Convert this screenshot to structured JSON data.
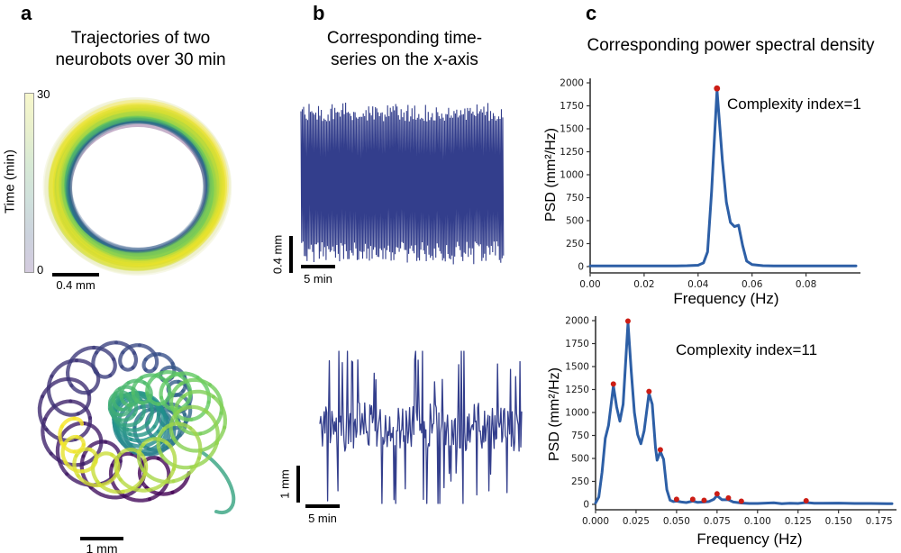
{
  "panels": {
    "a": {
      "label": "a",
      "title_line1": "Trajectories of two",
      "title_line2": "neurobots over 30 min",
      "colorbar": {
        "label": "Time (min)",
        "max": "30",
        "min": "0",
        "gradient": [
          "#f7f7cb",
          "#e9f0cd",
          "#d7e9d5",
          "#cfe0dc",
          "#ccd2dd",
          "#d4cbde"
        ]
      },
      "ring_scale_bar": "0.4 mm",
      "tangle_scale_bar": "1 mm"
    },
    "b": {
      "label": "b",
      "title_line1": "Corresponding time-",
      "title_line2": "series on the x-axis",
      "top": {
        "y_scale_bar": "0.4 mm",
        "x_scale_bar": "5 min"
      },
      "bottom": {
        "y_scale_bar": "1 mm",
        "x_scale_bar": "5 min"
      }
    },
    "c": {
      "label": "c",
      "title": "Corresponding power spectral density",
      "top": {
        "annotation": "Complexity index=1",
        "xlabel": "Frequency (Hz)",
        "ylabel": "PSD (mm²/Hz)"
      },
      "bottom": {
        "annotation": "Complexity index=11",
        "xlabel": "Frequency (Hz)",
        "ylabel": "PSD (mm²/Hz)"
      }
    }
  },
  "chart_data": [
    {
      "id": "trajectory_ring",
      "type": "line",
      "title": "Trajectories of two neurobots over 30 min",
      "description": "Circular ring trajectory of two neurobots, colored by time 0-30 min (viridis)",
      "time_range_min": [
        0,
        30
      ],
      "colormap": [
        "#440154",
        "#3b528b",
        "#21918c",
        "#5ec962",
        "#fde725"
      ],
      "halo_color": "#eef0cc",
      "scale_bar": "0.4 mm",
      "seed": 7
    },
    {
      "id": "trajectory_tangle",
      "type": "line",
      "description": "Tangled looping trajectory of two neurobots, colored by time 0-30 min (viridis)",
      "time_range_min": [
        0,
        30
      ],
      "colormap": [
        "#440154",
        "#3b528b",
        "#21918c",
        "#5ec962",
        "#fde725"
      ],
      "scale_bar": "1 mm",
      "seed": 9
    },
    {
      "id": "timeseries_periodic",
      "type": "line",
      "pattern": "periodic",
      "description": "Dense nearly-periodic x-position time series over 30 min",
      "color": "#333e8c",
      "y_scale_bar": "0.4 mm",
      "x_scale_bar": "5 min",
      "cycles": 150,
      "seed": 12
    },
    {
      "id": "timeseries_irregular",
      "type": "line",
      "pattern": "irregular",
      "description": "Irregular spiky x-position time series over 30 min",
      "color": "#333e8c",
      "y_scale_bar": "1 mm",
      "x_scale_bar": "5 min",
      "n": 235,
      "seed": 21
    },
    {
      "id": "psd_simple",
      "type": "line",
      "annotation": "Complexity index=1",
      "xlabel": "Frequency (Hz)",
      "ylabel": "PSD (mm²/Hz)",
      "xlim": [
        0,
        0.0985
      ],
      "ylim": [
        0,
        2000
      ],
      "xticks": [
        0.0,
        0.02,
        0.04,
        0.06,
        0.08
      ],
      "xtick_labels": [
        "0.00",
        "0.02",
        "0.04",
        "0.06",
        "0.08"
      ],
      "yticks": [
        0,
        250,
        500,
        750,
        1000,
        1250,
        1500,
        1750,
        2000
      ],
      "ytick_labels": [
        "0",
        "250",
        "500",
        "750",
        "1000",
        "1250",
        "1500",
        "1750",
        "2000"
      ],
      "line_color": "#2d5fa6",
      "peak_color": "#cc1d15",
      "peak_radius": 3.4,
      "x": [
        0.0,
        0.004,
        0.008,
        0.012,
        0.016,
        0.02,
        0.024,
        0.028,
        0.032,
        0.036,
        0.04,
        0.042,
        0.0435,
        0.045,
        0.047,
        0.049,
        0.0505,
        0.052,
        0.0535,
        0.055,
        0.0565,
        0.058,
        0.06,
        0.064,
        0.068,
        0.072,
        0.078,
        0.084,
        0.09,
        0.0985
      ],
      "y": [
        8,
        8,
        8,
        8,
        8,
        8,
        8,
        8,
        8,
        10,
        15,
        40,
        160,
        820,
        1920,
        1150,
        700,
        480,
        435,
        450,
        230,
        60,
        22,
        10,
        8,
        8,
        8,
        8,
        8,
        8
      ],
      "peaks": [
        {
          "x": 0.047,
          "y": 1920
        }
      ]
    },
    {
      "id": "psd_complex",
      "type": "line",
      "annotation": "Complexity index=11",
      "xlabel": "Frequency (Hz)",
      "ylabel": "PSD (mm²/Hz)",
      "xlim": [
        0,
        0.183
      ],
      "ylim": [
        0,
        2000
      ],
      "xticks": [
        0.0,
        0.025,
        0.05,
        0.075,
        0.1,
        0.125,
        0.15,
        0.175
      ],
      "xtick_labels": [
        "0.000",
        "0.025",
        "0.050",
        "0.075",
        "0.100",
        "0.125",
        "0.150",
        "0.175"
      ],
      "yticks": [
        0,
        250,
        500,
        750,
        1000,
        1250,
        1500,
        1750,
        2000
      ],
      "ytick_labels": [
        "0",
        "250",
        "500",
        "750",
        "1000",
        "1250",
        "1500",
        "1750",
        "2000"
      ],
      "line_color": "#2d5fa6",
      "peak_color": "#cc1d15",
      "peak_radius": 3.0,
      "x": [
        0.0,
        0.002,
        0.004,
        0.006,
        0.008,
        0.011,
        0.013,
        0.015,
        0.017,
        0.02,
        0.022,
        0.024,
        0.026,
        0.028,
        0.03,
        0.033,
        0.035,
        0.037,
        0.038,
        0.04,
        0.042,
        0.044,
        0.046,
        0.048,
        0.05,
        0.053,
        0.056,
        0.06,
        0.063,
        0.067,
        0.07,
        0.073,
        0.075,
        0.078,
        0.082,
        0.085,
        0.09,
        0.095,
        0.1,
        0.105,
        0.11,
        0.115,
        0.12,
        0.125,
        0.13,
        0.135,
        0.14,
        0.15,
        0.16,
        0.17,
        0.18,
        0.183
      ],
      "y": [
        15,
        80,
        350,
        720,
        860,
        1290,
        1060,
        905,
        1090,
        1975,
        1450,
        1000,
        760,
        660,
        800,
        1210,
        1090,
        620,
        480,
        575,
        490,
        160,
        45,
        30,
        35,
        25,
        20,
        35,
        22,
        25,
        30,
        55,
        95,
        50,
        50,
        25,
        15,
        10,
        10,
        14,
        18,
        8,
        12,
        10,
        20,
        12,
        12,
        14,
        10,
        10,
        7,
        7
      ],
      "peaks": [
        {
          "x": 0.011,
          "y": 1290
        },
        {
          "x": 0.02,
          "y": 1975
        },
        {
          "x": 0.033,
          "y": 1210
        },
        {
          "x": 0.04,
          "y": 575
        },
        {
          "x": 0.05,
          "y": 35
        },
        {
          "x": 0.06,
          "y": 35
        },
        {
          "x": 0.067,
          "y": 25
        },
        {
          "x": 0.075,
          "y": 95
        },
        {
          "x": 0.082,
          "y": 50
        },
        {
          "x": 0.09,
          "y": 15
        },
        {
          "x": 0.13,
          "y": 20
        }
      ]
    }
  ]
}
